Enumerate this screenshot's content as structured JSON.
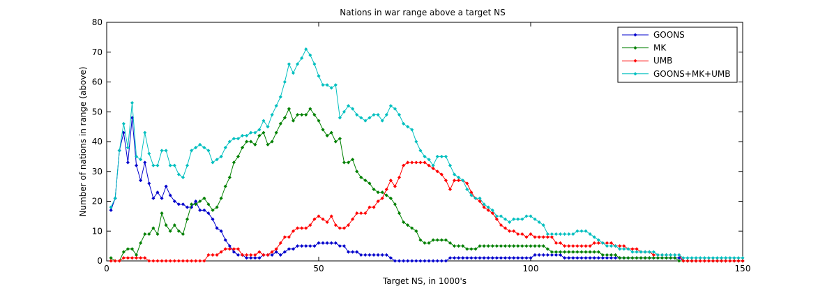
{
  "chart_data": {
    "type": "line",
    "title": "Nations in war range above a target NS",
    "xlabel": "Target NS, in 1000's",
    "ylabel": "Number of nations in range (above)",
    "xlim": [
      0,
      150
    ],
    "ylim": [
      0,
      80
    ],
    "xticks": [
      0,
      50,
      100,
      150
    ],
    "yticks": [
      0,
      10,
      20,
      30,
      40,
      50,
      60,
      70,
      80
    ],
    "grid": false,
    "legend_position": "top-right",
    "x": [
      1,
      2,
      3,
      4,
      5,
      6,
      7,
      8,
      9,
      10,
      11,
      12,
      13,
      14,
      15,
      16,
      17,
      18,
      19,
      20,
      21,
      22,
      23,
      24,
      25,
      26,
      27,
      28,
      29,
      30,
      31,
      32,
      33,
      34,
      35,
      36,
      37,
      38,
      39,
      40,
      41,
      42,
      43,
      44,
      45,
      46,
      47,
      48,
      49,
      50,
      51,
      52,
      53,
      54,
      55,
      56,
      57,
      58,
      59,
      60,
      61,
      62,
      63,
      64,
      65,
      66,
      67,
      68,
      69,
      70,
      71,
      72,
      73,
      74,
      75,
      76,
      77,
      78,
      79,
      80,
      81,
      82,
      83,
      84,
      85,
      86,
      87,
      88,
      89,
      90,
      91,
      92,
      93,
      94,
      95,
      96,
      97,
      98,
      99,
      100,
      101,
      102,
      103,
      104,
      105,
      106,
      107,
      108,
      109,
      110,
      111,
      112,
      113,
      114,
      115,
      116,
      117,
      118,
      119,
      120,
      121,
      122,
      123,
      124,
      125,
      126,
      127,
      128,
      129,
      130,
      131,
      132,
      133,
      134,
      135,
      136,
      137,
      138,
      139,
      140,
      141,
      142,
      143,
      144,
      145,
      146,
      147,
      148,
      149,
      150
    ],
    "series": [
      {
        "name": "GOONS",
        "color": "#0000cc",
        "values": [
          17,
          21,
          37,
          43,
          33,
          48,
          32,
          27,
          33,
          26,
          21,
          23,
          21,
          25,
          22,
          20,
          19,
          19,
          18,
          18,
          20,
          17,
          17,
          16,
          14,
          11,
          10,
          7,
          5,
          3,
          2,
          2,
          1,
          1,
          1,
          1,
          2,
          2,
          2,
          3,
          2,
          3,
          4,
          4,
          5,
          5,
          5,
          5,
          5,
          6,
          6,
          6,
          6,
          6,
          5,
          5,
          3,
          3,
          3,
          2,
          2,
          2,
          2,
          2,
          2,
          2,
          1,
          0,
          0,
          0,
          0,
          0,
          0,
          0,
          0,
          0,
          0,
          0,
          0,
          0,
          1,
          1,
          1,
          1,
          1,
          1,
          1,
          1,
          1,
          1,
          1,
          1,
          1,
          1,
          1,
          1,
          1,
          1,
          1,
          1,
          2,
          2,
          2,
          2,
          2,
          2,
          2,
          1,
          1,
          1,
          1,
          1,
          1,
          1,
          1,
          1,
          1,
          1,
          1,
          1,
          1,
          1,
          1,
          1,
          1,
          1,
          1,
          1,
          1,
          1,
          1,
          1,
          1,
          1,
          1,
          0,
          0,
          0,
          0,
          0,
          0,
          0,
          0,
          0,
          0,
          0,
          0,
          0,
          0,
          0
        ]
      },
      {
        "name": "MK",
        "color": "#008000",
        "values": [
          1,
          0,
          0,
          3,
          4,
          4,
          2,
          6,
          9,
          9,
          11,
          9,
          16,
          12,
          10,
          12,
          10,
          9,
          14,
          19,
          19,
          20,
          21,
          19,
          17,
          18,
          21,
          25,
          28,
          33,
          35,
          38,
          40,
          40,
          39,
          42,
          43,
          39,
          40,
          43,
          46,
          48,
          51,
          47,
          49,
          49,
          49,
          51,
          49,
          47,
          44,
          42,
          43,
          40,
          41,
          33,
          33,
          34,
          30,
          28,
          27,
          26,
          24,
          23,
          23,
          22,
          21,
          19,
          16,
          13,
          12,
          11,
          10,
          7,
          6,
          6,
          7,
          7,
          7,
          7,
          6,
          5,
          5,
          5,
          4,
          4,
          4,
          5,
          5,
          5,
          5,
          5,
          5,
          5,
          5,
          5,
          5,
          5,
          5,
          5,
          5,
          5,
          5,
          4,
          3,
          3,
          3,
          3,
          3,
          3,
          3,
          3,
          3,
          3,
          3,
          3,
          2,
          2,
          2,
          2,
          1,
          1,
          1,
          1,
          1,
          1,
          1,
          1,
          1,
          1,
          1,
          1,
          1,
          1,
          0,
          0,
          0,
          0,
          0,
          0,
          0,
          0,
          0,
          0,
          0,
          0,
          0,
          0,
          0,
          0
        ]
      },
      {
        "name": "UMB",
        "color": "#ff0000",
        "values": [
          0,
          0,
          0,
          1,
          1,
          1,
          1,
          1,
          1,
          0,
          0,
          0,
          0,
          0,
          0,
          0,
          0,
          0,
          0,
          0,
          0,
          0,
          0,
          2,
          2,
          2,
          3,
          4,
          4,
          4,
          4,
          2,
          2,
          2,
          2,
          3,
          2,
          2,
          3,
          4,
          6,
          8,
          8,
          10,
          11,
          11,
          11,
          12,
          14,
          15,
          14,
          13,
          15,
          12,
          11,
          11,
          12,
          14,
          16,
          16,
          16,
          18,
          18,
          20,
          21,
          24,
          27,
          25,
          28,
          32,
          33,
          33,
          33,
          33,
          33,
          32,
          31,
          30,
          29,
          27,
          24,
          27,
          27,
          27,
          26,
          23,
          21,
          20,
          18,
          17,
          16,
          14,
          12,
          11,
          10,
          10,
          9,
          9,
          8,
          9,
          8,
          8,
          8,
          8,
          8,
          6,
          6,
          5,
          5,
          5,
          5,
          5,
          5,
          5,
          6,
          6,
          6,
          6,
          6,
          5,
          5,
          5,
          4,
          4,
          4,
          3,
          3,
          3,
          2,
          2,
          2,
          2,
          2,
          2,
          2,
          0,
          0,
          0,
          0,
          0,
          0,
          0,
          0,
          0,
          0,
          0,
          0,
          0,
          0,
          0
        ]
      },
      {
        "name": "GOONS+MK+UMB",
        "color": "#00bfbf",
        "values": [
          18,
          21,
          37,
          46,
          38,
          53,
          35,
          34,
          43,
          36,
          32,
          32,
          37,
          37,
          32,
          32,
          29,
          28,
          32,
          37,
          38,
          39,
          38,
          37,
          33,
          34,
          35,
          38,
          40,
          41,
          41,
          42,
          42,
          43,
          43,
          44,
          47,
          45,
          49,
          52,
          55,
          60,
          66,
          63,
          66,
          68,
          71,
          69,
          66,
          62,
          59,
          59,
          58,
          59,
          48,
          50,
          52,
          51,
          49,
          48,
          47,
          48,
          49,
          49,
          47,
          49,
          52,
          51,
          49,
          46,
          45,
          44,
          40,
          37,
          35,
          34,
          32,
          35,
          35,
          35,
          32,
          29,
          28,
          27,
          24,
          22,
          21,
          21,
          19,
          18,
          17,
          15,
          15,
          14,
          13,
          14,
          14,
          14,
          15,
          15,
          14,
          13,
          12,
          9,
          9,
          9,
          9,
          9,
          9,
          9,
          10,
          10,
          10,
          9,
          8,
          7,
          6,
          5,
          5,
          5,
          4,
          4,
          4,
          3,
          3,
          3,
          3,
          3,
          3,
          2,
          2,
          2,
          2,
          2,
          2,
          1,
          1,
          1,
          1,
          1,
          1,
          1,
          1,
          1,
          1,
          1,
          1,
          1,
          1,
          1
        ]
      }
    ]
  }
}
